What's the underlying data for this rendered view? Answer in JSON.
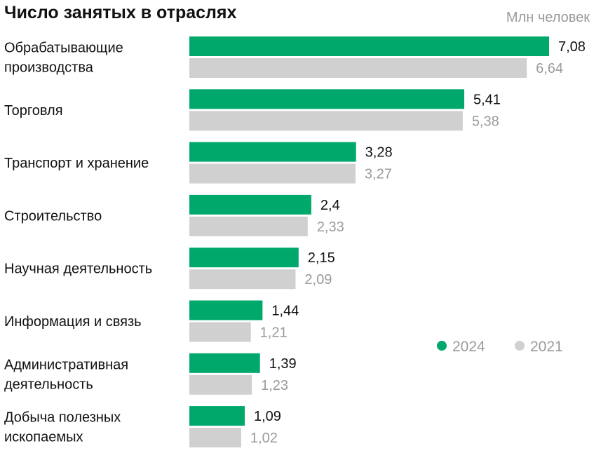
{
  "chart_data": {
    "type": "bar",
    "orientation": "horizontal",
    "title": "Число занятых в отраслях",
    "unit_label": "Млн человек",
    "categories": [
      [
        "Обрабатывающие",
        "производства"
      ],
      [
        "Торговля"
      ],
      [
        "Транспорт и хранение"
      ],
      [
        "Строительство"
      ],
      [
        "Научная деятельность"
      ],
      [
        "Информация и связь"
      ],
      [
        "Административная",
        "деятельность"
      ],
      [
        "Добыча полезных",
        "ископаемых"
      ]
    ],
    "series": [
      {
        "name": "2024",
        "color": "#00a86b",
        "value_color": "#111111",
        "values": [
          7.08,
          5.41,
          3.28,
          2.4,
          2.15,
          1.44,
          1.39,
          1.09
        ],
        "value_labels": [
          "7,08",
          "5,41",
          "3,28",
          "2,4",
          "2,15",
          "1,44",
          "1,39",
          "1,09"
        ]
      },
      {
        "name": "2021",
        "color": "#d0d0d0",
        "value_color": "#9a9a9a",
        "values": [
          6.64,
          5.38,
          3.27,
          2.33,
          2.09,
          1.21,
          1.23,
          1.02
        ],
        "value_labels": [
          "6,64",
          "5,38",
          "3,27",
          "2,33",
          "2,09",
          "1,21",
          "1,23",
          "1,02"
        ]
      }
    ],
    "xlim": [
      0,
      7.08
    ],
    "grid": false,
    "axes_visible": false,
    "legend_position": "right"
  }
}
